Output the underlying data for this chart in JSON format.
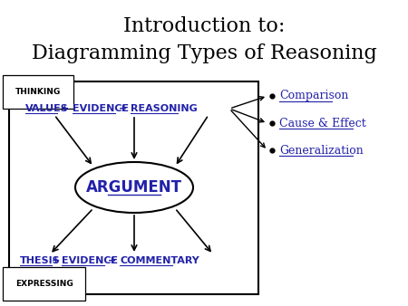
{
  "title_line1": "Introduction to:",
  "title_line2": "Diagramming Types of Reasoning",
  "blue_color": "#2222AA",
  "black_color": "#000000",
  "thinking_label": "THINKING",
  "expressing_label": "EXPRESSING",
  "argument_label": "ARGUMENT",
  "bullet_items": [
    "Comparison",
    "Cause & Effect",
    "Generalization"
  ],
  "background_color": "#ffffff",
  "fig_width": 4.5,
  "fig_height": 3.38,
  "dpi": 100
}
